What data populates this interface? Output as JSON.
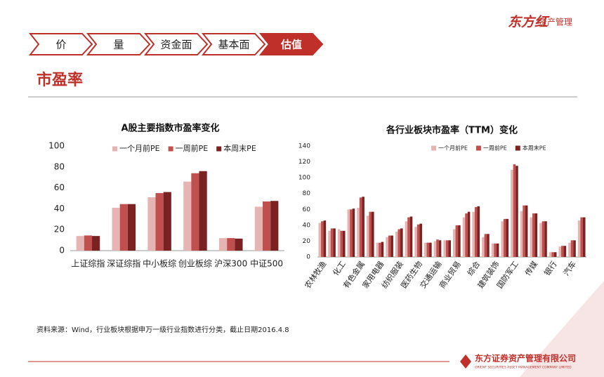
{
  "brand": {
    "name": "东方红",
    "sub": "资产管理"
  },
  "nav": {
    "items": [
      "价",
      "量",
      "资金面",
      "基本面",
      "估值"
    ],
    "active": 4
  },
  "heading": "市盈率",
  "chart_data": [
    {
      "type": "bar",
      "title": "A股主要指数市盈率变化",
      "categories": [
        "上证综指",
        "深证综指",
        "中小板综",
        "创业板综",
        "沪深300",
        "中证500"
      ],
      "series": [
        {
          "name": "一个月前PE",
          "color": "#e6b5b3",
          "values": [
            14,
            41,
            51,
            66,
            12,
            42
          ]
        },
        {
          "name": "一周前PE",
          "color": "#c0504d",
          "values": [
            14.5,
            44.5,
            55,
            74,
            12,
            47
          ]
        },
        {
          "name": "本周末PE",
          "color": "#7a2222",
          "values": [
            14,
            44.5,
            56,
            76,
            11.5,
            47.5
          ]
        }
      ],
      "ylim": [
        0,
        100
      ],
      "yticks": [
        0,
        20,
        40,
        60,
        80,
        100
      ],
      "grid": false
    },
    {
      "type": "bar",
      "title": "各行业板块市盈率（TTM）变化",
      "categories": [
        "农林牧渔",
        null,
        "化工",
        null,
        "有色金属",
        null,
        "家用电器",
        null,
        "纺织服装",
        null,
        "医药生物",
        null,
        "交通运输",
        null,
        "商业贸易",
        null,
        "综合",
        null,
        "建筑装饰",
        null,
        "国防军工",
        null,
        "传媒",
        null,
        "银行",
        null,
        "汽车",
        null
      ],
      "series": [
        {
          "name": "一个月前PE",
          "color": "#e6b5b3",
          "values": [
            43,
            33,
            35,
            60,
            62,
            52,
            18,
            25,
            32,
            45,
            38,
            18,
            20,
            21,
            35,
            50,
            57,
            25,
            17,
            45,
            110,
            58,
            50,
            43,
            6,
            13,
            18,
            46
          ]
        },
        {
          "name": "一周前PE",
          "color": "#c0504d",
          "values": [
            45,
            36,
            33,
            60,
            75,
            57,
            18,
            27,
            35,
            50,
            41,
            18,
            22,
            21,
            40,
            55,
            63,
            29,
            17,
            48,
            117,
            65,
            55,
            45,
            6,
            14,
            21,
            50
          ]
        },
        {
          "name": "本周末PE",
          "color": "#7a2222",
          "values": [
            46,
            36,
            33,
            61,
            76,
            57,
            19,
            27,
            36,
            51,
            42,
            18,
            21,
            21,
            40,
            57,
            64,
            29,
            17,
            48,
            115,
            65,
            55,
            45,
            6,
            14,
            21,
            50
          ]
        }
      ],
      "ylim": [
        0,
        140
      ],
      "yticks": [
        0,
        20,
        40,
        60,
        80,
        100,
        120,
        140
      ],
      "grid": false
    }
  ],
  "source": "资料来源：Wind，行业板块根据申万一级行业指数进行分类，截止日期2016.4.8",
  "footer": {
    "company": "东方证券资产管理有限公司",
    "english": "ORIENT SECURITIES ASSET MANAGEMENT COMPANY LIMITED"
  }
}
